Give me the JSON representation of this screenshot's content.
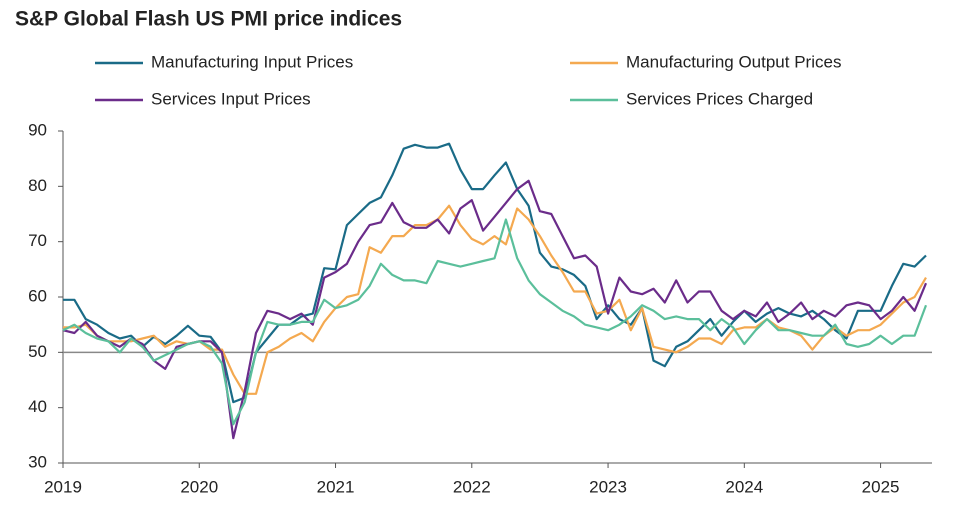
{
  "chart_data": {
    "type": "line",
    "title": "S&P Global Flash US PMI price indices",
    "categories": [
      "2019",
      null,
      null,
      null,
      null,
      null,
      null,
      null,
      null,
      null,
      null,
      null,
      "2020",
      null,
      null,
      null,
      null,
      null,
      null,
      null,
      null,
      null,
      null,
      null,
      "2021",
      null,
      null,
      null,
      null,
      null,
      null,
      null,
      null,
      null,
      null,
      null,
      "2022",
      null,
      null,
      null,
      null,
      null,
      null,
      null,
      null,
      null,
      null,
      null,
      "2023",
      null,
      null,
      null,
      null,
      null,
      null,
      null,
      null,
      null,
      null,
      null,
      "2024",
      null,
      null,
      null,
      null,
      null,
      null,
      null,
      null,
      null,
      null,
      null,
      "2025",
      null,
      null,
      null,
      null
    ],
    "series": [
      {
        "name": "Manufacturing Input Prices",
        "color": "#1a6b87",
        "values": [
          59.5,
          59.5,
          56,
          55,
          53.5,
          52.5,
          53,
          51,
          52.8,
          51.5,
          53,
          54.8,
          53,
          52.8,
          50,
          41,
          41.8,
          50,
          52.5,
          55,
          55,
          56.5,
          57,
          65.2,
          65,
          73,
          75,
          77,
          78,
          82,
          86.8,
          87.5,
          87,
          87,
          87.7,
          83,
          79.5,
          79.5,
          82,
          84.3,
          79.5,
          76.5,
          68,
          65.5,
          65,
          64,
          62,
          56,
          58.5,
          56,
          55,
          58,
          48.5,
          47.5,
          51,
          52,
          54,
          56,
          53,
          55.5,
          57.5,
          55.5,
          57,
          58,
          57,
          56.5,
          57.5,
          56,
          54,
          52.5,
          57.5,
          57.5,
          57.5,
          62,
          66,
          65.5,
          67.5
        ]
      },
      {
        "name": "Manufacturing Output Prices",
        "color": "#f4a950",
        "values": [
          54.5,
          54.5,
          55,
          53,
          52,
          52,
          52,
          52.5,
          53,
          51,
          52,
          51.5,
          52,
          50.5,
          50.5,
          46,
          42.5,
          42.5,
          50,
          51,
          52.5,
          53.5,
          52,
          55.5,
          58,
          60,
          60.5,
          69,
          68,
          71,
          71,
          73,
          73,
          74,
          76.5,
          73,
          70.5,
          69.5,
          71,
          69.5,
          76,
          74,
          71,
          67.5,
          64.5,
          61,
          61,
          57,
          57.5,
          59.5,
          54,
          58,
          51,
          50.5,
          50,
          51,
          52.5,
          52.5,
          51.5,
          54,
          54.5,
          54.5,
          56,
          54.5,
          54,
          53,
          50.5,
          53,
          54.5,
          53,
          54,
          54,
          55,
          57,
          59,
          60,
          63.5
        ]
      },
      {
        "name": "Services Input Prices",
        "color": "#6b2c8a",
        "values": [
          54,
          53.5,
          55.5,
          53,
          52,
          51,
          52.5,
          51.5,
          48.5,
          47,
          51,
          51.5,
          52,
          52,
          50,
          34.5,
          43,
          53.5,
          57.5,
          57,
          56,
          57,
          55,
          63.5,
          64.5,
          66,
          70,
          73,
          73.5,
          77,
          73.5,
          72.5,
          72.5,
          74,
          71.5,
          76,
          77.5,
          72,
          74.5,
          77,
          79.5,
          81,
          75.5,
          75,
          71,
          67,
          67.5,
          65.5,
          57,
          63.5,
          61,
          60.5,
          61.5,
          59,
          63,
          59,
          61,
          61,
          57.5,
          56,
          57.5,
          56.5,
          59,
          55.5,
          57,
          59,
          56,
          57.5,
          56.5,
          58.5,
          59,
          58.5,
          56,
          57.5,
          60,
          57.5,
          62.5
        ]
      },
      {
        "name": "Services Prices Charged",
        "color": "#5bbf9b",
        "values": [
          54,
          55,
          53.5,
          52.5,
          52,
          50,
          52.5,
          51,
          48.5,
          49.5,
          50.5,
          51.5,
          52,
          51,
          48,
          37,
          41,
          50,
          55.5,
          55,
          55,
          55.5,
          55.5,
          59.5,
          58,
          58.5,
          59.5,
          62,
          66,
          64,
          63,
          63,
          62.5,
          66.5,
          66,
          65.5,
          66,
          66.5,
          67,
          74,
          67,
          63,
          60.5,
          59,
          57.5,
          56.5,
          55,
          54.5,
          54,
          55,
          56.5,
          58.5,
          57.5,
          56,
          56.5,
          56,
          56,
          54,
          56,
          54.5,
          51.5,
          54,
          56,
          54,
          54,
          53.5,
          53,
          53,
          55,
          51.5,
          51,
          51.5,
          53,
          51.5,
          53,
          53,
          58.5
        ]
      }
    ],
    "ylim": [
      30,
      90
    ],
    "yticks": [
      30,
      40,
      50,
      60,
      70,
      80,
      90
    ],
    "reference_line": 50
  }
}
